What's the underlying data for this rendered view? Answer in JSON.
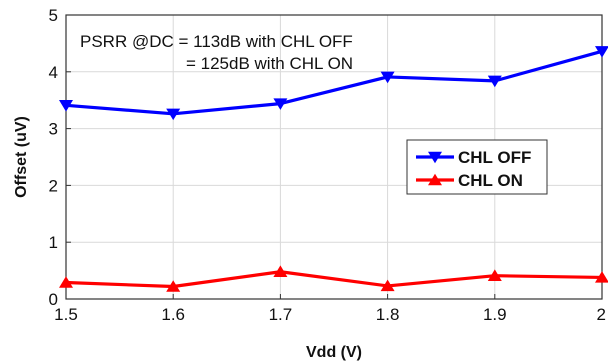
{
  "chart_data": {
    "type": "line",
    "title": "",
    "xlabel": "Vdd (V)",
    "ylabel": "Offset (uV)",
    "x": [
      1.5,
      1.6,
      1.7,
      1.8,
      1.9,
      2.0
    ],
    "xlim": [
      1.5,
      2.0
    ],
    "ylim": [
      0,
      5
    ],
    "x_ticks": [
      "1.5",
      "1.6",
      "1.7",
      "1.8",
      "1.9",
      "2"
    ],
    "y_ticks": [
      "0",
      "1",
      "2",
      "3",
      "4",
      "5"
    ],
    "grid": true,
    "legend_position": "center-right",
    "annotations": [
      "PSRR @DC = 113dB with CHL OFF",
      "= 125dB with CHL ON"
    ],
    "series": [
      {
        "name": "CHL OFF",
        "color": "#0000ff",
        "marker": "triangle-down",
        "values": [
          3.41,
          3.26,
          3.44,
          3.91,
          3.84,
          4.36
        ]
      },
      {
        "name": "CHL ON",
        "color": "#ff0000",
        "marker": "triangle-up",
        "values": [
          0.29,
          0.22,
          0.48,
          0.23,
          0.41,
          0.38
        ]
      }
    ]
  }
}
